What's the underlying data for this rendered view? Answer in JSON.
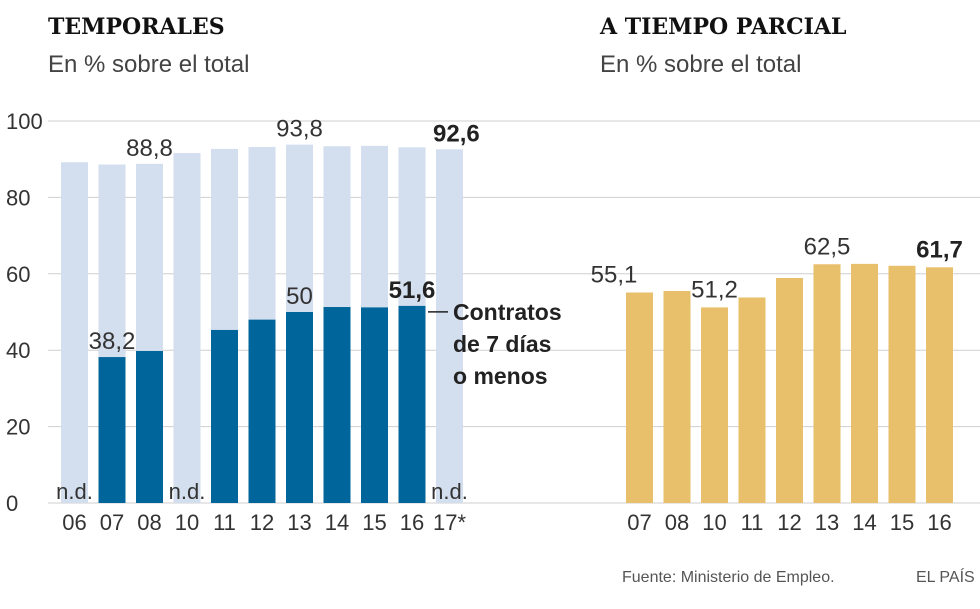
{
  "chart_data": [
    {
      "type": "bar",
      "title": "TEMPORALES",
      "subtitle": "En % sobre el total",
      "categories": [
        "06",
        "07",
        "08",
        "10",
        "11",
        "12",
        "13",
        "14",
        "15",
        "16",
        "17*"
      ],
      "ylim": [
        0,
        100
      ],
      "yticks": [
        "0",
        "20",
        "40",
        "60",
        "80",
        "100"
      ],
      "series": [
        {
          "name": "Temporales",
          "color": "#d3deee",
          "values": [
            89.2,
            88.6,
            88.8,
            91.6,
            92.7,
            93.2,
            93.8,
            93.4,
            93.5,
            93.1,
            92.6
          ]
        },
        {
          "name": "Contratos de 7 días o menos",
          "color": "#00659a",
          "values": [
            null,
            38.2,
            39.8,
            null,
            45.3,
            48.0,
            50,
            51.3,
            51.2,
            51.6,
            null
          ]
        }
      ],
      "data_labels": [
        {
          "series": 0,
          "index": 2,
          "text": "88,8",
          "bold": false
        },
        {
          "series": 0,
          "index": 6,
          "text": "93,8",
          "bold": false
        },
        {
          "series": 0,
          "index": 10,
          "text": "92,6",
          "bold": true
        },
        {
          "series": 1,
          "index": 1,
          "text": "38,2",
          "bold": false
        },
        {
          "series": 1,
          "index": 6,
          "text": "50",
          "bold": false
        },
        {
          "series": 1,
          "index": 9,
          "text": "51,6",
          "bold": true
        }
      ],
      "not_available_label": "n.d.",
      "not_available_indices": [
        0,
        3,
        10
      ],
      "annotation": [
        "Contratos",
        "de 7 días",
        "o menos"
      ]
    },
    {
      "type": "bar",
      "title": "A TIEMPO PARCIAL",
      "subtitle": "En % sobre el total",
      "categories": [
        "07",
        "08",
        "10",
        "11",
        "12",
        "13",
        "14",
        "15",
        "16"
      ],
      "ylim": [
        0,
        100
      ],
      "series": [
        {
          "name": "A tiempo parcial",
          "color": "#e8bf6a",
          "values": [
            55.1,
            55.5,
            51.2,
            53.8,
            58.9,
            62.5,
            62.6,
            62.1,
            61.7
          ]
        }
      ],
      "data_labels": [
        {
          "series": 0,
          "index": 0,
          "text": "55,1",
          "bold": false
        },
        {
          "series": 0,
          "index": 2,
          "text": "51,2",
          "bold": false
        },
        {
          "series": 0,
          "index": 5,
          "text": "62,5",
          "bold": false
        },
        {
          "series": 0,
          "index": 8,
          "text": "61,7",
          "bold": true
        }
      ]
    }
  ],
  "footer": {
    "source": "Fuente: Ministerio de Empleo.",
    "brand": "EL PAÍS"
  }
}
